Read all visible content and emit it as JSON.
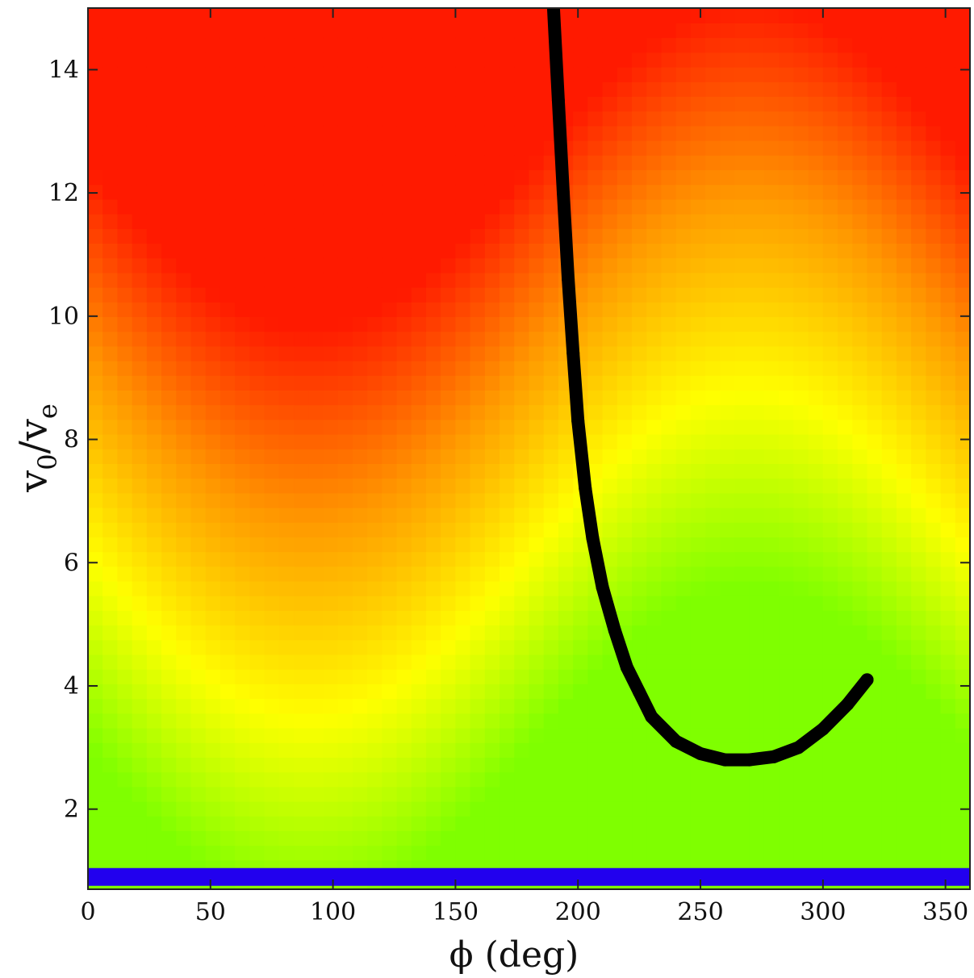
{
  "chart_data": {
    "type": "heatmap",
    "title": "",
    "xlabel": "ϕ  (deg)",
    "ylabel": "v0/ve",
    "ylabel_main": "v",
    "ylabel_sub": "0",
    "ylabel_slash": "/v",
    "ylabel_sub2": "e",
    "xlim": [
      0,
      360
    ],
    "ylim": [
      0.7,
      15
    ],
    "xticks": [
      0,
      50,
      100,
      150,
      200,
      250,
      300,
      350
    ],
    "yticks": [
      2,
      4,
      6,
      8,
      10,
      12,
      14
    ],
    "xtick_labels": [
      "0",
      "50",
      "100",
      "150",
      "200",
      "250",
      "300",
      "350"
    ],
    "ytick_labels": [
      "2",
      "4",
      "6",
      "8",
      "10",
      "12",
      "14"
    ],
    "grid": false,
    "legend": "none",
    "colormap": [
      "#7fff00",
      "#ffff00",
      "#ff9900",
      "#ff1a00"
    ],
    "series": [
      {
        "color": "#000000",
        "kind": "curve-band",
        "x": [
          190,
          192,
          194,
          196,
          198,
          200,
          203,
          206,
          210,
          215,
          220,
          225,
          230,
          240,
          250,
          260,
          270,
          280,
          290,
          300,
          310,
          318
        ],
        "y": [
          15,
          13.5,
          12,
          10.6,
          9.4,
          8.3,
          7.2,
          6.4,
          5.6,
          4.9,
          4.3,
          3.9,
          3.5,
          3.1,
          2.9,
          2.8,
          2.8,
          2.85,
          3.0,
          3.3,
          3.7,
          4.1
        ]
      },
      {
        "color": "#2200ee",
        "kind": "band",
        "x": [
          0,
          360
        ],
        "y": [
          0.9,
          0.9
        ]
      }
    ]
  }
}
